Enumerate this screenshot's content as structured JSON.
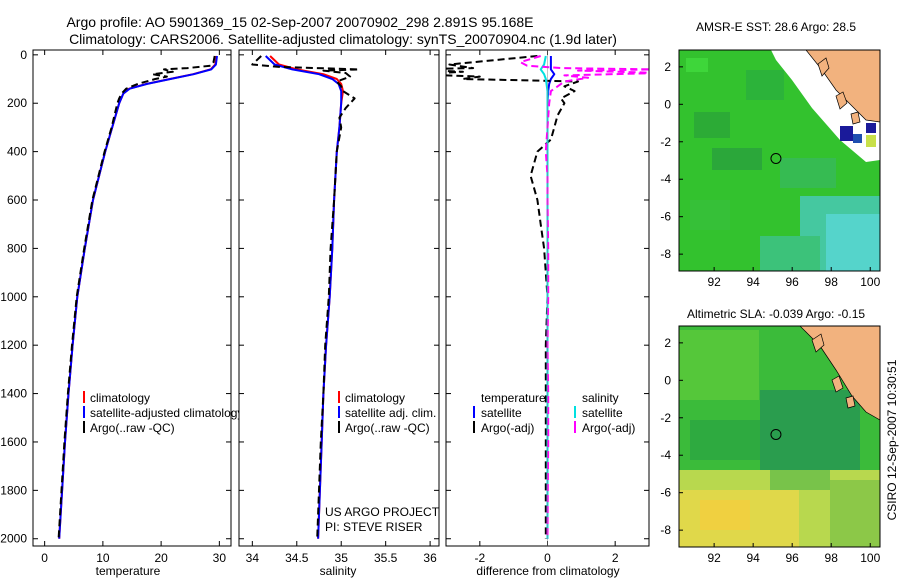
{
  "header": {
    "line1": "Argo profile: AO 5901369_15 02-Sep-2007 20070902_298 2.891S 95.168E",
    "line2": "Climatology: CARS2006. Satellite-adjusted climatology: synTS_20070904.nc (1.9d later)"
  },
  "colors": {
    "climatology": "#ff0000",
    "satellite": "#0000ff",
    "argo": "#000000",
    "sal_satellite": "#00e0e0",
    "sal_argo": "#ff00ff",
    "land": "#f2b27e"
  },
  "chart_data": [
    {
      "type": "line",
      "name": "temperature-profile",
      "xlabel": "temperature",
      "xlim": [
        -2,
        32
      ],
      "ylim": [
        2030,
        -20
      ],
      "xticks": [
        0,
        10,
        20,
        30
      ],
      "yticks": [
        0,
        200,
        400,
        600,
        800,
        1000,
        1200,
        1400,
        1600,
        1800,
        2000
      ],
      "series": [
        {
          "name": "climatology",
          "color": "#ff0000",
          "dash": "",
          "depth": [
            5,
            40,
            60,
            80,
            100,
            120,
            140,
            160,
            200,
            300,
            400,
            600,
            800,
            1000,
            1200,
            1400,
            1600,
            1800,
            2000
          ],
          "values": [
            29.5,
            29.3,
            28.5,
            25.5,
            21.5,
            17.5,
            14.5,
            13.5,
            12.8,
            11.6,
            10.4,
            8.3,
            6.9,
            5.6,
            4.8,
            4.1,
            3.5,
            3.0,
            2.5
          ]
        },
        {
          "name": "satellite-adjusted climatology",
          "color": "#0000ff",
          "dash": "",
          "depth": [
            5,
            40,
            60,
            80,
            100,
            120,
            140,
            160,
            200,
            300,
            400,
            600,
            800,
            1000,
            1200,
            1400,
            1600,
            1800,
            2000
          ],
          "values": [
            29.6,
            29.4,
            28.6,
            25.6,
            21.6,
            17.6,
            14.6,
            13.5,
            12.8,
            11.6,
            10.4,
            8.3,
            6.9,
            5.6,
            4.8,
            4.1,
            3.5,
            3.0,
            2.5
          ]
        },
        {
          "name": "Argo(..raw -QC)",
          "color": "#000000",
          "dash": "7,4",
          "depth": [
            5,
            30,
            45,
            55,
            60,
            70,
            80,
            90,
            100,
            120,
            140,
            160,
            180,
            200,
            300,
            400,
            600,
            800,
            1000,
            1200,
            1400,
            1600,
            1800,
            2000
          ],
          "values": [
            29.2,
            29.0,
            28.5,
            24.5,
            20.5,
            22.0,
            18.5,
            21.0,
            19.0,
            16.0,
            14.0,
            13.2,
            12.8,
            12.5,
            11.5,
            10.3,
            8.2,
            6.8,
            5.5,
            4.7,
            4.0,
            3.4,
            2.9,
            2.4
          ]
        }
      ],
      "legend": {
        "placement": "lower-right",
        "entries": [
          "climatology",
          "satellite-adjusted climatology",
          "Argo(..raw -QC)"
        ]
      }
    },
    {
      "type": "line",
      "name": "salinity-profile",
      "xlabel": "salinity",
      "xlim": [
        33.85,
        36.1
      ],
      "ylim": [
        2030,
        -20
      ],
      "xticks": [
        34,
        34.5,
        35,
        35.5,
        36
      ],
      "series": [
        {
          "name": "climatology",
          "color": "#ff0000",
          "dash": "",
          "depth": [
            5,
            40,
            60,
            80,
            100,
            120,
            150,
            200,
            300,
            400,
            600,
            800,
            1000,
            1200,
            1400,
            1600,
            1800,
            2000
          ],
          "values": [
            34.2,
            34.3,
            34.5,
            34.8,
            34.95,
            35.0,
            35.02,
            35.0,
            34.98,
            34.95,
            34.92,
            34.9,
            34.87,
            34.83,
            34.8,
            34.78,
            34.76,
            34.74
          ]
        },
        {
          "name": "satellite adj. clim.",
          "color": "#0000ff",
          "dash": "",
          "depth": [
            5,
            40,
            60,
            80,
            100,
            120,
            150,
            200,
            300,
            400,
            600,
            800,
            1000,
            1200,
            1400,
            1600,
            1800,
            2000
          ],
          "values": [
            34.15,
            34.25,
            34.45,
            34.75,
            34.9,
            34.97,
            35.0,
            35.0,
            34.98,
            34.95,
            34.92,
            34.9,
            34.87,
            34.83,
            34.8,
            34.78,
            34.76,
            34.74
          ]
        },
        {
          "name": "Argo(..raw -QC)",
          "color": "#000000",
          "dash": "7,4",
          "depth": [
            5,
            40,
            50,
            60,
            65,
            75,
            90,
            110,
            130,
            150,
            180,
            220,
            260,
            300,
            400,
            600,
            800,
            1000,
            1200,
            1400,
            1600,
            1800,
            2000
          ],
          "values": [
            34.1,
            34.0,
            34.3,
            35.2,
            34.8,
            35.05,
            35.1,
            34.95,
            35.0,
            35.02,
            35.15,
            35.05,
            34.98,
            35.0,
            34.95,
            34.92,
            34.88,
            34.86,
            34.82,
            34.8,
            34.77,
            34.75,
            34.73
          ]
        }
      ],
      "legend": {
        "placement": "lower-right",
        "entries": [
          "climatology",
          "satellite adj. clim.",
          "Argo(..raw -QC)"
        ]
      },
      "annotations": [
        "US ARGO PROJECT",
        "PI: STEVE RISER"
      ]
    },
    {
      "type": "line",
      "name": "difference-profile",
      "xlabel": "difference from climatology",
      "xlim": [
        -3.0,
        3.0
      ],
      "ylim": [
        2030,
        -20
      ],
      "xticks": [
        -2,
        0,
        2
      ],
      "series": [
        {
          "name": "temperature satellite",
          "color": "#0000ff",
          "dash": "",
          "depth": [
            5,
            40,
            60,
            80,
            100,
            120,
            150,
            200,
            400,
            800,
            1200,
            1600,
            2000
          ],
          "values": [
            0.1,
            0.1,
            0.1,
            0.2,
            0.1,
            0.05,
            0.02,
            0.0,
            0.0,
            0.0,
            0.0,
            0.0,
            0.0
          ]
        },
        {
          "name": "temperature Argo(-adj)",
          "color": "#000000",
          "dash": "7,4",
          "depth": [
            5,
            40,
            55,
            60,
            70,
            80,
            90,
            100,
            110,
            130,
            150,
            180,
            200,
            250,
            300,
            350,
            400,
            450,
            500,
            600,
            700,
            800,
            1000,
            1200,
            1500,
            1800,
            2000
          ],
          "values": [
            -0.3,
            -2.9,
            -2.2,
            -4.0,
            -2.5,
            -4.0,
            -2.0,
            -2.5,
            0.9,
            0.5,
            0.8,
            0.4,
            0.5,
            0.3,
            0.2,
            0.1,
            -0.3,
            -0.4,
            -0.5,
            -0.3,
            -0.2,
            -0.1,
            0.0,
            -0.05,
            -0.05,
            -0.05,
            -0.05
          ]
        },
        {
          "name": "salinity satellite",
          "color": "#00e0e0",
          "dash": "",
          "depth": [
            5,
            40,
            60,
            80,
            100,
            120,
            150,
            200,
            400,
            800,
            1200,
            1600,
            2000
          ],
          "values": [
            -0.05,
            -0.1,
            -0.2,
            -0.1,
            -0.05,
            -0.03,
            0.0,
            0.0,
            0.0,
            0.0,
            0.0,
            0.0,
            0.0
          ]
        },
        {
          "name": "salinity Argo(-adj)",
          "color": "#ff00ff",
          "dash": "7,4",
          "depth": [
            5,
            30,
            45,
            55,
            60,
            65,
            75,
            85,
            95,
            110,
            150,
            200,
            300,
            400,
            500,
            600,
            800,
            1000,
            1200,
            1400,
            1600,
            1800,
            2000
          ],
          "values": [
            -0.2,
            -0.8,
            -0.6,
            0.4,
            3.2,
            0.9,
            3.3,
            0.5,
            1.2,
            0.5,
            0.1,
            0.05,
            0.0,
            -0.05,
            0.0,
            0.0,
            0.02,
            0.02,
            0.0,
            0.02,
            0.02,
            0.01,
            0.0
          ]
        }
      ],
      "legend": {
        "placement": "lower-center",
        "headers": [
          "temperature",
          "salinity"
        ],
        "entries": [
          "satellite",
          "Argo(-adj)",
          "satellite",
          "Argo(-adj)"
        ]
      }
    },
    {
      "type": "heatmap",
      "name": "amsre-sst-map",
      "title": "AMSR-E SST: 28.6 Argo: 28.5",
      "xlim": [
        90.2,
        100.5
      ],
      "ylim": [
        -8.9,
        2.9
      ],
      "xticks": [
        92,
        94,
        96,
        98,
        100
      ],
      "yticks": [
        2,
        0,
        -2,
        -4,
        -6,
        -8
      ],
      "marker": {
        "lon": 95.168,
        "lat": -2.891
      }
    },
    {
      "type": "heatmap",
      "name": "altimetric-sla-map",
      "title": "Altimetric SLA: -0.039 Argo: -0.15",
      "xlim": [
        90.2,
        100.5
      ],
      "ylim": [
        -8.9,
        2.9
      ],
      "xticks": [
        92,
        94,
        96,
        98,
        100
      ],
      "yticks": [
        2,
        0,
        -2,
        -4,
        -6,
        -8
      ],
      "marker": {
        "lon": 95.168,
        "lat": -2.891
      }
    }
  ],
  "sidebar_stamp": "CSIRO 12-Sep-2007 10:30:51"
}
